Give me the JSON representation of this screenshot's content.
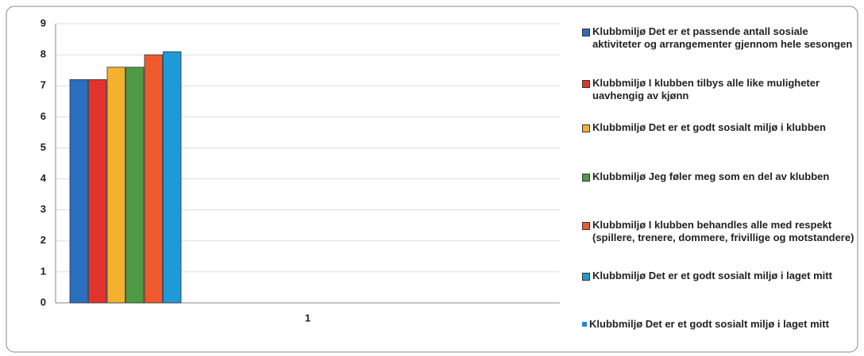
{
  "chart_data": {
    "type": "bar",
    "categories": [
      "1"
    ],
    "series": [
      {
        "name": "Klubbmiljø Det er et passende antall sosiale aktiviteter og arrangementer gjennom hele sesongen",
        "color": "#2a6fbe",
        "values": [
          7.2
        ]
      },
      {
        "name": "Klubbmiljø I klubben tilbys alle like muligheter uavhengig av kjønn",
        "color": "#e0332e",
        "values": [
          7.2
        ]
      },
      {
        "name": "Klubbmiljø Det er et godt sosialt miljø i klubben",
        "color": "#f4b12e",
        "values": [
          7.6
        ]
      },
      {
        "name": "Klubbmiljø Jeg føler meg som en del av klubben",
        "color": "#4e9a45",
        "values": [
          7.6
        ]
      },
      {
        "name": "Klubbmiljø I klubben behandles alle med respekt (spillere, trenere, dommere, frivillige og motstandere)",
        "color": "#ee5a2e",
        "values": [
          8.0
        ]
      },
      {
        "name": "Klubbmiljø Det er et godt sosialt miljø i laget mitt",
        "color": "#1f9ad8",
        "values": [
          8.1
        ]
      },
      {
        "name": "Klubbmiljø Det er et godt sosialt miljø i laget mitt",
        "color": "#1e88e5",
        "values": [
          null
        ]
      }
    ],
    "ylim": [
      0,
      9
    ],
    "yticks": [
      0,
      1,
      2,
      3,
      4,
      5,
      6,
      7,
      8,
      9
    ],
    "grid": true
  }
}
